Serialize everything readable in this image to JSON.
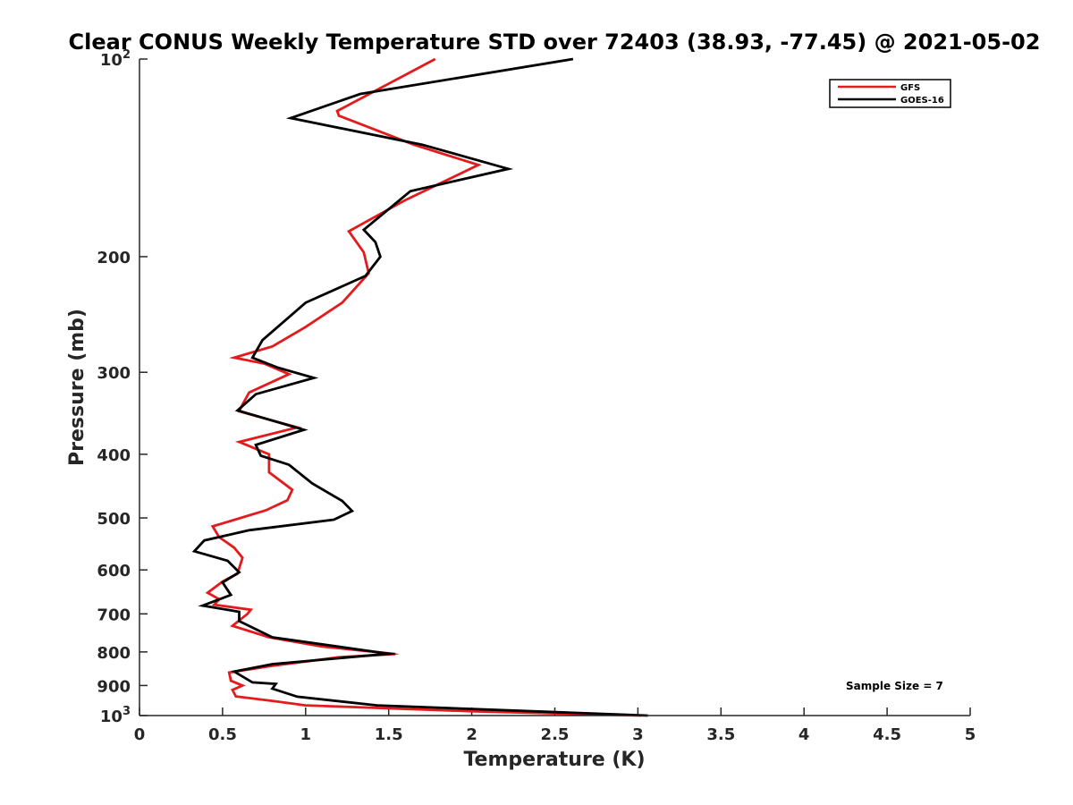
{
  "chart_data": {
    "type": "line",
    "title": "Clear CONUS Weekly Temperature STD over 72403 (38.93, -77.45) @ 2021-05-02",
    "xlabel": "Temperature (K)",
    "ylabel": "Pressure (mb)",
    "xlim": [
      0,
      5
    ],
    "ylim": [
      1000,
      100
    ],
    "y_scale": "log",
    "y_reversed": true,
    "grid": false,
    "legend_position": "top-right",
    "x_ticks": [
      {
        "value": 0,
        "label": "0"
      },
      {
        "value": 0.5,
        "label": "0.5"
      },
      {
        "value": 1,
        "label": "1"
      },
      {
        "value": 1.5,
        "label": "1.5"
      },
      {
        "value": 2,
        "label": "2"
      },
      {
        "value": 2.5,
        "label": "2.5"
      },
      {
        "value": 3,
        "label": "3"
      },
      {
        "value": 3.5,
        "label": "3.5"
      },
      {
        "value": 4,
        "label": "4"
      },
      {
        "value": 4.5,
        "label": "4.5"
      },
      {
        "value": 5,
        "label": "5"
      }
    ],
    "y_ticks": [
      {
        "value": 100,
        "label": "10",
        "sup": "2"
      },
      {
        "value": 200,
        "label": "200"
      },
      {
        "value": 300,
        "label": "300"
      },
      {
        "value": 400,
        "label": "400"
      },
      {
        "value": 500,
        "label": "500"
      },
      {
        "value": 600,
        "label": "600"
      },
      {
        "value": 700,
        "label": "700"
      },
      {
        "value": 800,
        "label": "800"
      },
      {
        "value": 900,
        "label": "900"
      },
      {
        "value": 1000,
        "label": "10",
        "sup": "3"
      }
    ],
    "series": [
      {
        "name": "GFS",
        "color": "#e41a1c",
        "points": [
          [
            1.78,
            100
          ],
          [
            1.19,
            120
          ],
          [
            1.2,
            122
          ],
          [
            1.65,
            135
          ],
          [
            2.04,
            145
          ],
          [
            1.6,
            164
          ],
          [
            1.26,
            183
          ],
          [
            1.35,
            197
          ],
          [
            1.38,
            212
          ],
          [
            1.22,
            235
          ],
          [
            1.0,
            256
          ],
          [
            0.8,
            274
          ],
          [
            0.57,
            285
          ],
          [
            0.75,
            291
          ],
          [
            0.9,
            302
          ],
          [
            0.66,
            322
          ],
          [
            0.62,
            336
          ],
          [
            0.6,
            344
          ],
          [
            0.95,
            364
          ],
          [
            0.6,
            383
          ],
          [
            0.78,
            400
          ],
          [
            0.78,
            426
          ],
          [
            0.92,
            453
          ],
          [
            0.89,
            470
          ],
          [
            0.76,
            487
          ],
          [
            0.44,
            515
          ],
          [
            0.48,
            535
          ],
          [
            0.57,
            555
          ],
          [
            0.62,
            575
          ],
          [
            0.59,
            608
          ],
          [
            0.5,
            625
          ],
          [
            0.41,
            650
          ],
          [
            0.48,
            665
          ],
          [
            0.45,
            678
          ],
          [
            0.67,
            690
          ],
          [
            0.65,
            700
          ],
          [
            0.56,
            730
          ],
          [
            0.78,
            760
          ],
          [
            1.1,
            785
          ],
          [
            1.54,
            806
          ],
          [
            1.2,
            815
          ],
          [
            0.8,
            840
          ],
          [
            0.54,
            860
          ],
          [
            0.55,
            885
          ],
          [
            0.62,
            900
          ],
          [
            0.56,
            914
          ],
          [
            0.58,
            935
          ],
          [
            0.8,
            950
          ],
          [
            1.0,
            965
          ],
          [
            2.0,
            985
          ],
          [
            3.02,
            1000
          ]
        ]
      },
      {
        "name": "GOES-16",
        "color": "#000000",
        "points": [
          [
            2.61,
            100
          ],
          [
            1.33,
            113
          ],
          [
            0.91,
            123
          ],
          [
            1.7,
            135
          ],
          [
            2.22,
            147
          ],
          [
            1.63,
            159
          ],
          [
            1.35,
            182
          ],
          [
            1.42,
            190
          ],
          [
            1.45,
            200
          ],
          [
            1.36,
            214
          ],
          [
            1.0,
            235
          ],
          [
            0.74,
            268
          ],
          [
            0.68,
            285
          ],
          [
            0.83,
            295
          ],
          [
            1.05,
            306
          ],
          [
            0.7,
            324
          ],
          [
            0.59,
            343
          ],
          [
            0.99,
            367
          ],
          [
            0.7,
            387
          ],
          [
            0.73,
            402
          ],
          [
            0.9,
            415
          ],
          [
            1.04,
            443
          ],
          [
            1.22,
            471
          ],
          [
            1.28,
            488
          ],
          [
            1.17,
            503
          ],
          [
            0.66,
            522
          ],
          [
            0.39,
            541
          ],
          [
            0.33,
            562
          ],
          [
            0.53,
            581
          ],
          [
            0.6,
            605
          ],
          [
            0.5,
            627
          ],
          [
            0.55,
            655
          ],
          [
            0.38,
            680
          ],
          [
            0.6,
            695
          ],
          [
            0.6,
            718
          ],
          [
            0.8,
            760
          ],
          [
            1.5,
            805
          ],
          [
            0.8,
            835
          ],
          [
            0.57,
            857
          ],
          [
            0.68,
            890
          ],
          [
            0.82,
            895
          ],
          [
            0.8,
            910
          ],
          [
            0.95,
            936
          ],
          [
            1.43,
            965
          ],
          [
            3.06,
            1000
          ]
        ]
      }
    ],
    "annotations": [
      {
        "text": "Sample Size = 7"
      }
    ]
  }
}
